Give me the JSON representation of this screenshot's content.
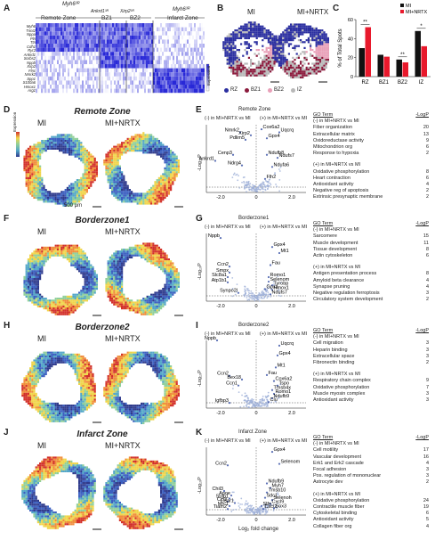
{
  "panels": {
    "a": "A",
    "b": "B",
    "c": "C",
    "d": "D",
    "e": "E",
    "f": "F",
    "g": "G",
    "h": "H",
    "i": "I",
    "j": "J",
    "k": "K"
  },
  "heatmap": {
    "group_top_left": "Myh6³ᴿ",
    "group_top_right": "Myh6³ᴿ",
    "subgroup_ankrd1": "Ankrd1³ᴿ",
    "subgroup_xirp2": "Xirp2³ᴿ",
    "zones": [
      "Remote Zone",
      "BZ1",
      "BZ2",
      "Infarct Zone"
    ],
    "genes": [
      "Myh6",
      "Tnnt2",
      "Nppa",
      "Pln",
      "Ttn",
      "Cdh1",
      "Ryr2",
      "Ankrd1",
      "Sorbs2",
      "Nppb",
      "Xirp2",
      "Flnc",
      "Nmrk2",
      "Spp1",
      "S100a6",
      "Hmox1",
      "Arg1"
    ],
    "scale_label": "Expression"
  },
  "spatial_b": {
    "left": "MI",
    "right": "MI+NRTX",
    "legend": [
      "RZ",
      "BZ1",
      "BZ2",
      "IZ"
    ],
    "colors": [
      "#2b2fa0",
      "#8b1a3c",
      "#e8a0b8",
      "#b8b8b8"
    ]
  },
  "bar_c": {
    "ylabel": "% of Total Spots",
    "legend": [
      "MI",
      "MI+NRTX"
    ],
    "colors": [
      "#111111",
      "#e8192c"
    ],
    "chart_data": {
      "type": "bar",
      "categories": [
        "RZ",
        "BZ1",
        "BZ2",
        "IZ"
      ],
      "series": [
        {
          "name": "MI",
          "values": [
            30,
            23,
            18,
            48
          ]
        },
        {
          "name": "MI+NRTX",
          "values": [
            52,
            21,
            15,
            32
          ]
        }
      ],
      "ylim": [
        0,
        60
      ],
      "yticks": [
        0,
        20,
        40,
        60
      ],
      "sig": [
        "**",
        "",
        "**",
        "*"
      ]
    }
  },
  "rows": [
    {
      "title": "Remote Zone",
      "left": "MI",
      "right": "MI+NRTX",
      "scalebar": "500 μm",
      "expr": "Expression",
      "volcano": {
        "title": "Remote Zone",
        "neg": "(-) in MI+NRTX vs MI",
        "pos": "(+) in MI+NRTX vs MI",
        "genes": [
          [
            "Nmrk2",
            -0.9,
            8
          ],
          [
            "Xirp2",
            -0.3,
            7.6
          ],
          [
            "Pdlim5",
            -0.6,
            7
          ],
          [
            "Cenp3",
            -1.3,
            5
          ],
          [
            "Ankrd1",
            -2.3,
            4.2
          ],
          [
            "Ndrg4",
            -0.8,
            3.6
          ],
          [
            "Cox6a2",
            0.3,
            8.4
          ],
          [
            "Uqcrq",
            1.3,
            8
          ],
          [
            "Gpx4",
            0.6,
            7.2
          ],
          [
            "Ndufb8",
            0.6,
            5
          ],
          [
            "Ndufs7",
            1.2,
            4.6
          ],
          [
            "Ndufa6",
            0.9,
            3.4
          ],
          [
            "Flh2",
            0.5,
            1.8
          ]
        ]
      },
      "go": {
        "hdr": "GO Term",
        "hdr_val": "-LogP",
        "sec1": "(-) in MI+NRTX vs MI",
        "items1": [
          [
            "Fiber organization",
            "20"
          ],
          [
            "Extracellular matrix",
            "13"
          ],
          [
            "Oxidoreductase activity",
            "9"
          ],
          [
            "Mitochondrion org",
            "6"
          ],
          [
            "Response to hypoxia",
            "2"
          ]
        ],
        "sec2": "(+) in MI+NRTX vs MI",
        "items2": [
          [
            "Oxidative phosphorylation",
            "8"
          ],
          [
            "Heart contraction",
            "6"
          ],
          [
            "Antioxidant activity",
            "4"
          ],
          [
            "Negative reg of apoptosis",
            "2"
          ],
          [
            "Extrinsic presynaptic membrane",
            "2"
          ]
        ]
      }
    },
    {
      "title": "Borderzone1",
      "left": "MI",
      "right": "MI+NRTX",
      "volcano": {
        "title": "Borderzone1",
        "neg": "(-) in MI+NRTX vs MI",
        "pos": "(+) in MI+NRTX vs MI",
        "genes": [
          [
            "Nppb",
            -2.0,
            8.4
          ],
          [
            "Gpx4",
            0.9,
            7.2
          ],
          [
            "Mt1",
            1.3,
            6.4
          ],
          [
            "Ccn2",
            -1.5,
            4.6
          ],
          [
            "Fau",
            0.8,
            4.8
          ],
          [
            "Smpx",
            -1.5,
            3.8
          ],
          [
            "Slc8a1",
            -1.6,
            3.2
          ],
          [
            "Romo1",
            0.7,
            3.2
          ],
          [
            "Atp1b1",
            -1.6,
            2.5
          ],
          [
            "Selenom",
            0.7,
            2.6
          ],
          [
            "Tyrobp",
            0.9,
            2.1
          ],
          [
            "Gpx1",
            0.5,
            1.6
          ],
          [
            "Hmox1",
            0.9,
            1.5
          ],
          [
            "Synpo2l",
            -1.0,
            1.1
          ],
          [
            "Ndufs7",
            0.8,
            0.9
          ]
        ]
      },
      "go": {
        "hdr": "GO Term",
        "hdr_val": "-LogP",
        "sec1": "(-) in MI+NRTX vs MI",
        "items1": [
          [
            "Sarcomere",
            "15"
          ],
          [
            "Muscle development",
            "11"
          ],
          [
            "Tissue development",
            "8"
          ],
          [
            "Actin cytoskeleton",
            "6"
          ]
        ],
        "sec2": "(+) in MI+NRTX vs MI",
        "items2": [
          [
            "Antigen presentation process",
            "8"
          ],
          [
            "Amyloid beta clearance",
            "4"
          ],
          [
            "Synapse pruning",
            "4"
          ],
          [
            "Negative regulation ferroptosis",
            "3"
          ],
          [
            "Circulatory system development",
            "2"
          ]
        ]
      }
    },
    {
      "title": "Borderzone2",
      "left": "MI",
      "right": "MI+NRTX",
      "volcano": {
        "title": "Borderzone2",
        "neg": "(-) in MI+NRTX vs MI",
        "pos": "(+) in MI+NRTX vs MI",
        "genes": [
          [
            "Nppb",
            -2.2,
            9
          ],
          [
            "Uqcrq",
            1.3,
            8.3
          ],
          [
            "Gpx4",
            1.2,
            7.0
          ],
          [
            "Mt1",
            1.1,
            5.4
          ],
          [
            "Ccn2",
            -1.5,
            4.3
          ],
          [
            "Fau",
            0.6,
            4.4
          ],
          [
            "Bex18",
            -0.8,
            3.8
          ],
          [
            "Cox6a2",
            1.0,
            3.6
          ],
          [
            "Ccn1",
            -1.0,
            3.0
          ],
          [
            "Tspo",
            1.2,
            3.0
          ],
          [
            "Tmsb4x",
            0.9,
            2.4
          ],
          [
            "Romo1",
            1.0,
            1.9
          ],
          [
            "Ndufb9",
            0.9,
            1.3
          ],
          [
            "Igfbp3",
            -1.5,
            0.7
          ],
          [
            "Clu",
            0.7,
            0.8
          ]
        ]
      },
      "go": {
        "hdr": "GO Term",
        "hdr_val": "-LogP",
        "sec1": "(-) in MI+NRTX vs MI",
        "items1": [
          [
            "Cell migration",
            "3"
          ],
          [
            "Heparin binding",
            "3"
          ],
          [
            "Extracellular space",
            "3"
          ],
          [
            "Fibronectin binding",
            "2"
          ]
        ],
        "sec2": "(+) in MI+NRTX vs MI",
        "items2": [
          [
            "Respiratory chain complex",
            "9"
          ],
          [
            "Oxidative phosphorylation",
            "7"
          ],
          [
            "Muscle myosin complex",
            "3"
          ],
          [
            "Antioxidant activity",
            "3"
          ]
        ]
      }
    },
    {
      "title": "Infarct Zone",
      "left": "MI",
      "right": "MI+NRTX",
      "volcano": {
        "title": "Infarct Zone",
        "neg": "(-) in MI+NRTX vs MI",
        "pos": "(+) in MI+NRTX vs MI",
        "xlabel": "Log₂ fold change",
        "genes": [
          [
            "Gpx4",
            0.9,
            8.4
          ],
          [
            "Selenom",
            1.3,
            6.8
          ],
          [
            "Ccn2",
            -1.6,
            6.6
          ],
          [
            "Ndufb9",
            0.6,
            4.2
          ],
          [
            "Myh7",
            0.8,
            3.6
          ],
          [
            "Chil3",
            -1.8,
            3.2
          ],
          [
            "Tmsb10",
            0.6,
            3.0
          ],
          [
            "Apoe",
            -1.4,
            2.6
          ],
          [
            "Sdc1",
            0.5,
            2.3
          ],
          [
            "Stab1",
            -1.5,
            2.2
          ],
          [
            "Selenoh",
            0.9,
            2.0
          ],
          [
            "Ccl2",
            -1.6,
            1.8
          ],
          [
            "C3ar1",
            -1.2,
            1.6
          ],
          [
            "Cxcl9",
            0.8,
            1.5
          ],
          [
            "Mrc1",
            -1.5,
            1.2
          ],
          [
            "Slfn",
            0.3,
            1.2
          ],
          [
            "Tiam2",
            -1.6,
            0.8
          ],
          [
            "Cxcl2",
            0.4,
            0.8
          ],
          [
            "Sox3",
            1.0,
            0.9
          ]
        ]
      },
      "go": {
        "hdr": "GO Term",
        "hdr_val": "-LogP",
        "sec1": "(-) in MI+NRTX vs MI",
        "items1": [
          [
            "Cell motility",
            "17"
          ],
          [
            "Vascular development",
            "16"
          ],
          [
            "Erk1 and Erk2 cascade",
            "4"
          ],
          [
            "Focal adhesion",
            "3"
          ],
          [
            "Pos. regulation of mononuclear",
            "3"
          ],
          [
            "Astrocyte dev",
            "2"
          ]
        ],
        "sec2": "(+) in MI+NRTX vs MI",
        "items2": [
          [
            "Oxidative phosphorylation",
            "24"
          ],
          [
            "Contractile muscle fiber",
            "19"
          ],
          [
            "Cytoskeletal binding",
            "6"
          ],
          [
            "Antioxidant activity",
            "5"
          ],
          [
            "Collagen fiber org",
            "4"
          ]
        ]
      }
    }
  ],
  "volcano_axes": {
    "ylabel": "-Log₁₀P",
    "xticks": [
      "-2.0",
      "0",
      "2.0"
    ],
    "xrange": [
      -2.8,
      2.8
    ],
    "yrange": [
      0,
      9
    ]
  }
}
